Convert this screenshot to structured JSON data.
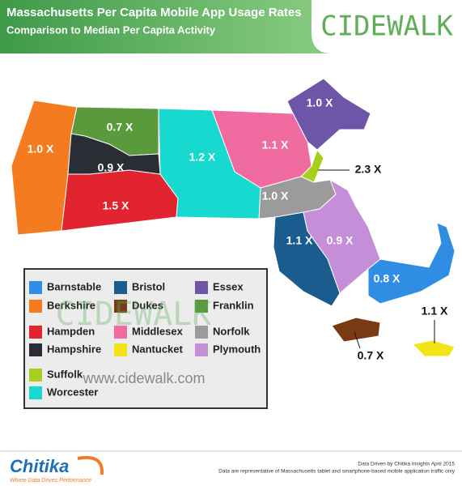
{
  "header": {
    "title": "Massachusetts Per Capita Mobile App Usage Rates",
    "subtitle": "Comparison to Median Per Capita Activity",
    "brand": "CIDEWALK"
  },
  "regions": [
    {
      "name": "Barnstable",
      "color": "#2f8de4",
      "label": "0.8 X"
    },
    {
      "name": "Berkshire",
      "color": "#f47b20",
      "label": "1.0 X"
    },
    {
      "name": "Bristol",
      "color": "#1b5c8f",
      "label": "1.1 X"
    },
    {
      "name": "Dukes",
      "color": "#7a3a14",
      "label": "0.7 X"
    },
    {
      "name": "Essex",
      "color": "#6d56a8",
      "label": "1.0 X"
    },
    {
      "name": "Franklin",
      "color": "#5a9a3c",
      "label": "0.7 X"
    },
    {
      "name": "Hampden",
      "color": "#e12430",
      "label": "1.5 X"
    },
    {
      "name": "Hampshire",
      "color": "#2b2d34",
      "label": "0.9 X"
    },
    {
      "name": "Middlesex",
      "color": "#f06ba0",
      "label": "1.1 X"
    },
    {
      "name": "Nantucket",
      "color": "#f2e417",
      "label": "1.1 X"
    },
    {
      "name": "Norfolk",
      "color": "#9b9b9b",
      "label": "1.0 X"
    },
    {
      "name": "Plymouth",
      "color": "#c48ed9",
      "label": "0.9 X"
    },
    {
      "name": "Suffolk",
      "color": "#a6d01c",
      "label": "2.3 X"
    },
    {
      "name": "Worcester",
      "color": "#17d9d0",
      "label": "1.2 X"
    }
  ],
  "watermark": {
    "brand": "CIDEWALK",
    "url": "www.cidewalk.com"
  },
  "footer": {
    "logo": "Chitika",
    "tagline": "Where Data Drives Performance",
    "source": "Data Driven by Chitika Insights April 2015",
    "note": "Data are representative of Massachusetts tablet and smartphone-based mobile application traffic only"
  }
}
